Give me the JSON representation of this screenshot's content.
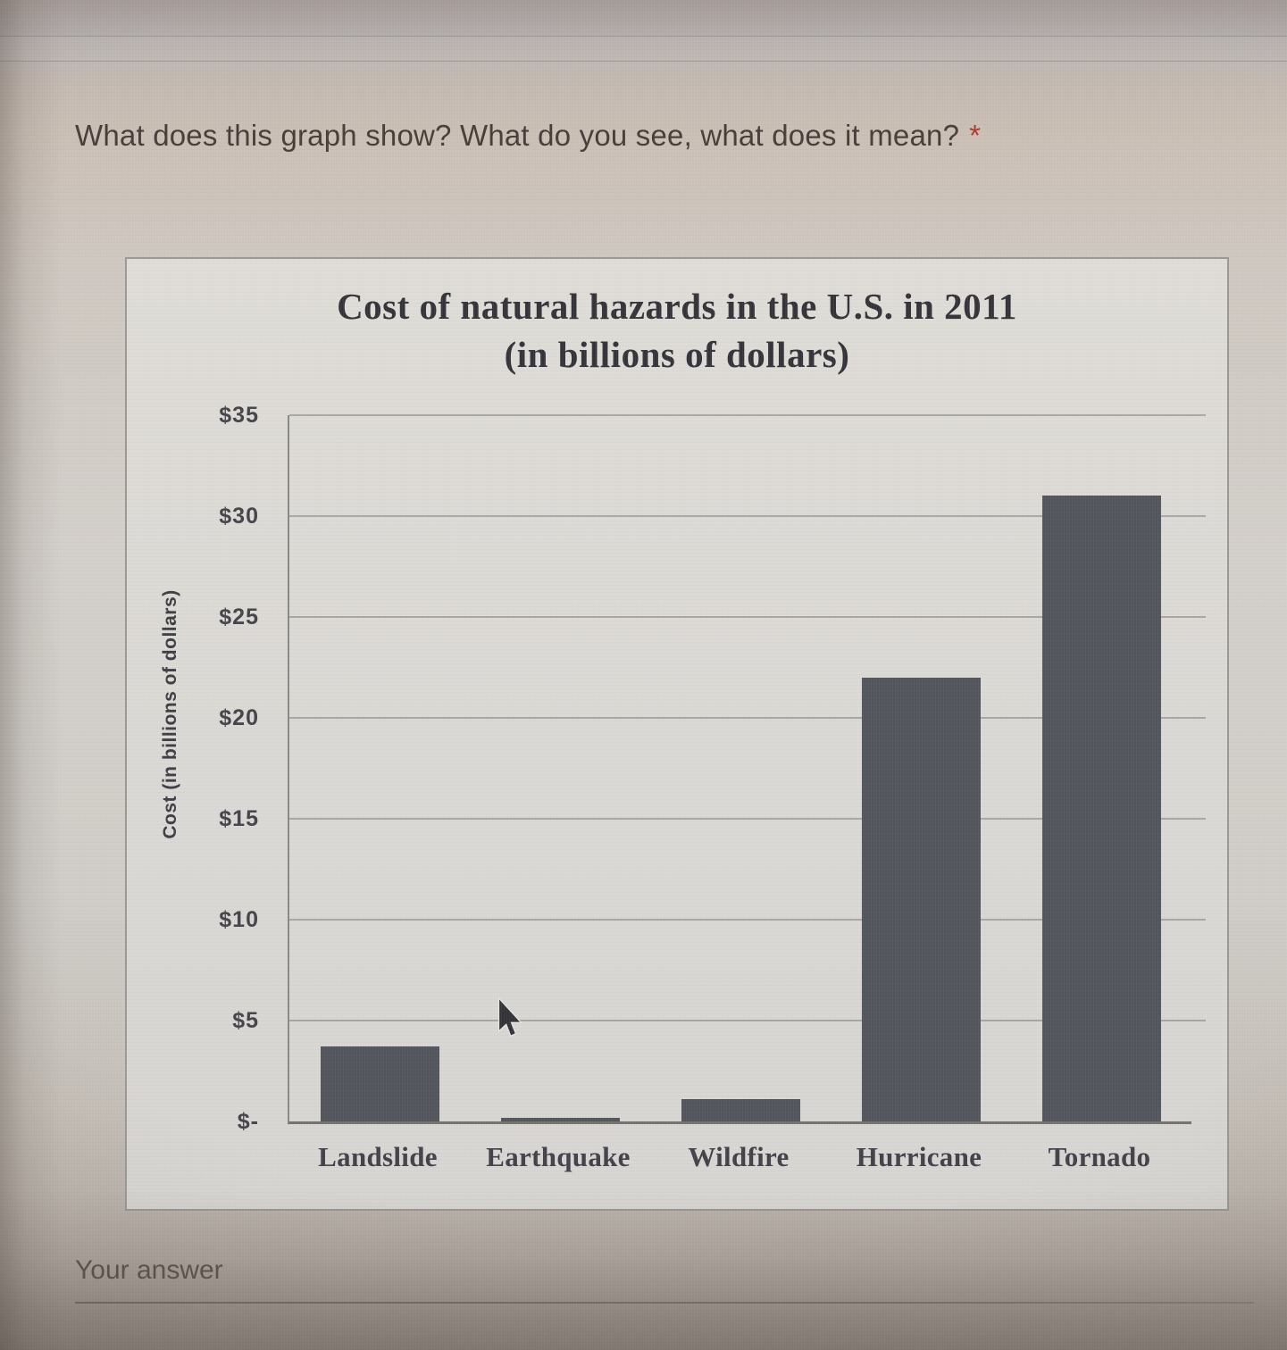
{
  "question": {
    "text": "What does this graph show? What do you see, what does it mean?",
    "required_mark": "*"
  },
  "answer_field": {
    "placeholder": "Your answer"
  },
  "colors": {
    "question_text": "#473e39",
    "required_asterisk": "#ae3a2e",
    "chart_text": "#3b3a40",
    "bar": "#53565c",
    "gridline": "#9c9c99",
    "answer_text": "#5d5752"
  },
  "chart_data": {
    "type": "bar",
    "title": "Cost of natural hazards in the U.S. in 2011 (in billions of dollars)",
    "title_line1": "Cost of natural hazards in the U.S. in 2011",
    "title_line2": "(in billions of dollars)",
    "ylabel": "Cost (in billions of dollars)",
    "xlabel": "",
    "categories": [
      "Landslide",
      "Earthquake",
      "Wildfire",
      "Hurricane",
      "Tornado"
    ],
    "values": [
      3.7,
      0.2,
      1.1,
      22,
      31
    ],
    "ylim": [
      0,
      35
    ],
    "yticks": [
      {
        "label": "$35",
        "value": 35
      },
      {
        "label": "$30",
        "value": 30
      },
      {
        "label": "$25",
        "value": 25
      },
      {
        "label": "$20",
        "value": 20
      },
      {
        "label": "$15",
        "value": 15
      },
      {
        "label": "$10",
        "value": 10
      },
      {
        "label": "$5",
        "value": 5
      },
      {
        "label": "$-",
        "value": 0
      }
    ],
    "grid": true,
    "legend": false
  }
}
